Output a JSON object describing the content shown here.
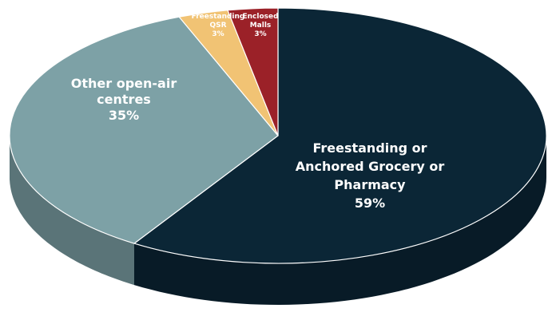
{
  "chart_data": {
    "type": "pie",
    "style": "3d",
    "slices": [
      {
        "label_lines": [
          "Freestanding or",
          "Anchored Grocery or",
          "Pharmacy"
        ],
        "percent_label": "59%",
        "value": 59,
        "color": "#0b2636"
      },
      {
        "label_lines": [
          "Other open-air",
          "centres"
        ],
        "percent_label": "35%",
        "value": 35,
        "color": "#7da1a6"
      },
      {
        "label_lines": [
          "Freestanding",
          "QSR"
        ],
        "percent_label": "3%",
        "value": 3,
        "color": "#f1c374"
      },
      {
        "label_lines": [
          "Enclosed",
          "Malls"
        ],
        "percent_label": "3%",
        "value": 3,
        "color": "#9b2128"
      }
    ]
  }
}
